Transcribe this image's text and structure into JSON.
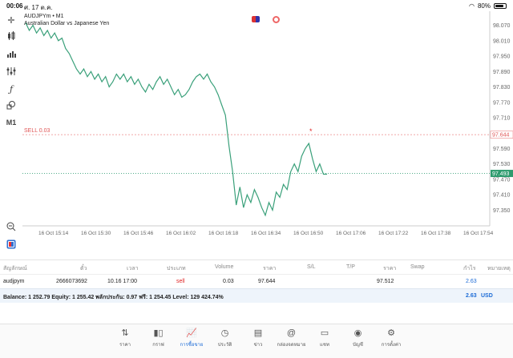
{
  "status_bar": {
    "time": "00:06",
    "date": "ศ. 17 ต.ค.",
    "battery": "80%"
  },
  "chart": {
    "symbol_line": "AUDJPYm • M1",
    "description": "Australian Dollar vs Japanese Yen",
    "sell_label": "SELL 0.03",
    "sell_price": "97.644",
    "current_price": "97.493",
    "y_labels": [
      "98.070",
      "98.010",
      "97.950",
      "97.890",
      "97.830",
      "97.770",
      "97.710",
      "97.650",
      "97.590",
      "97.530",
      "97.470",
      "97.410",
      "97.350"
    ],
    "x_labels": [
      "16 Oct 15:14",
      "16 Oct 15:30",
      "16 Oct 15:46",
      "16 Oct 16:02",
      "16 Oct 16:18",
      "16 Oct 16:34",
      "16 Oct 16:50",
      "16 Oct 17:06",
      "16 Oct 17:22",
      "16 Oct 17:38",
      "16 Oct 17:54"
    ]
  },
  "chart_data": {
    "type": "line",
    "y": [
      98.08,
      98.05,
      98.07,
      98.04,
      98.06,
      98.03,
      98.05,
      98.02,
      98.04,
      98.01,
      98.02,
      97.98,
      97.96,
      97.93,
      97.9,
      97.88,
      97.9,
      97.87,
      97.89,
      97.86,
      97.88,
      97.85,
      97.87,
      97.83,
      97.85,
      97.88,
      97.86,
      97.88,
      97.85,
      97.87,
      97.84,
      97.86,
      97.83,
      97.81,
      97.84,
      97.82,
      97.85,
      97.87,
      97.84,
      97.86,
      97.83,
      97.8,
      97.82,
      97.79,
      97.8,
      97.82,
      97.85,
      97.87,
      97.88,
      97.86,
      97.88,
      97.85,
      97.83,
      97.8,
      97.76,
      97.72,
      97.6,
      97.5,
      97.37,
      97.44,
      97.36,
      97.41,
      97.38,
      97.43,
      97.4,
      97.36,
      97.33,
      97.38,
      97.35,
      97.42,
      97.4,
      97.45,
      97.43,
      97.5,
      97.53,
      97.5,
      97.56,
      97.59,
      97.61,
      97.55,
      97.5,
      97.53,
      97.49,
      97.49
    ],
    "ylim": [
      97.32,
      98.1
    ],
    "grid": false
  },
  "toolbar": {
    "icons": [
      "crosshair-icon",
      "candles-icon",
      "bars-icon",
      "indicators-icon",
      "function-icon",
      "shapes-icon"
    ],
    "timeframe": "M1"
  },
  "positions": {
    "headers": [
      "สัญลักษณ์",
      "ตั๋ว",
      "เวลา",
      "ประเภท",
      "Volume",
      "ราคา",
      "S/L",
      "T/P",
      "ราคา",
      "Swap",
      "กำไร",
      "หมายเหตุ"
    ],
    "row": {
      "symbol": "audjpym",
      "ticket": "2666073692",
      "time": "10.16 17:00",
      "type": "sell",
      "volume": "0.03",
      "open_price": "97.644",
      "current_price": "97.512",
      "profit": "2.63"
    },
    "balance_text": "Balance: 1 252.79 Equity: 1 255.42 พลักประกัน: 0.97 ฟรี: 1 254.45 Level: 129 424.74%",
    "total_profit": "2.63",
    "currency": "USD"
  },
  "tabs": [
    {
      "label": "ราคา",
      "icon": "arrows-up-down-icon"
    },
    {
      "label": "กราฟ",
      "icon": "candles-icon"
    },
    {
      "label": "การซื้อขาย",
      "icon": "trade-chart-icon",
      "active": true
    },
    {
      "label": "ประวัติ",
      "icon": "history-icon"
    },
    {
      "label": "ข่าว",
      "icon": "news-icon"
    },
    {
      "label": "กล่องจดหมาย",
      "icon": "at-icon"
    },
    {
      "label": "แชท",
      "icon": "chat-icon"
    },
    {
      "label": "บัญชี",
      "icon": "account-icon"
    },
    {
      "label": "การตั้งค่า",
      "icon": "gear-icon"
    }
  ]
}
